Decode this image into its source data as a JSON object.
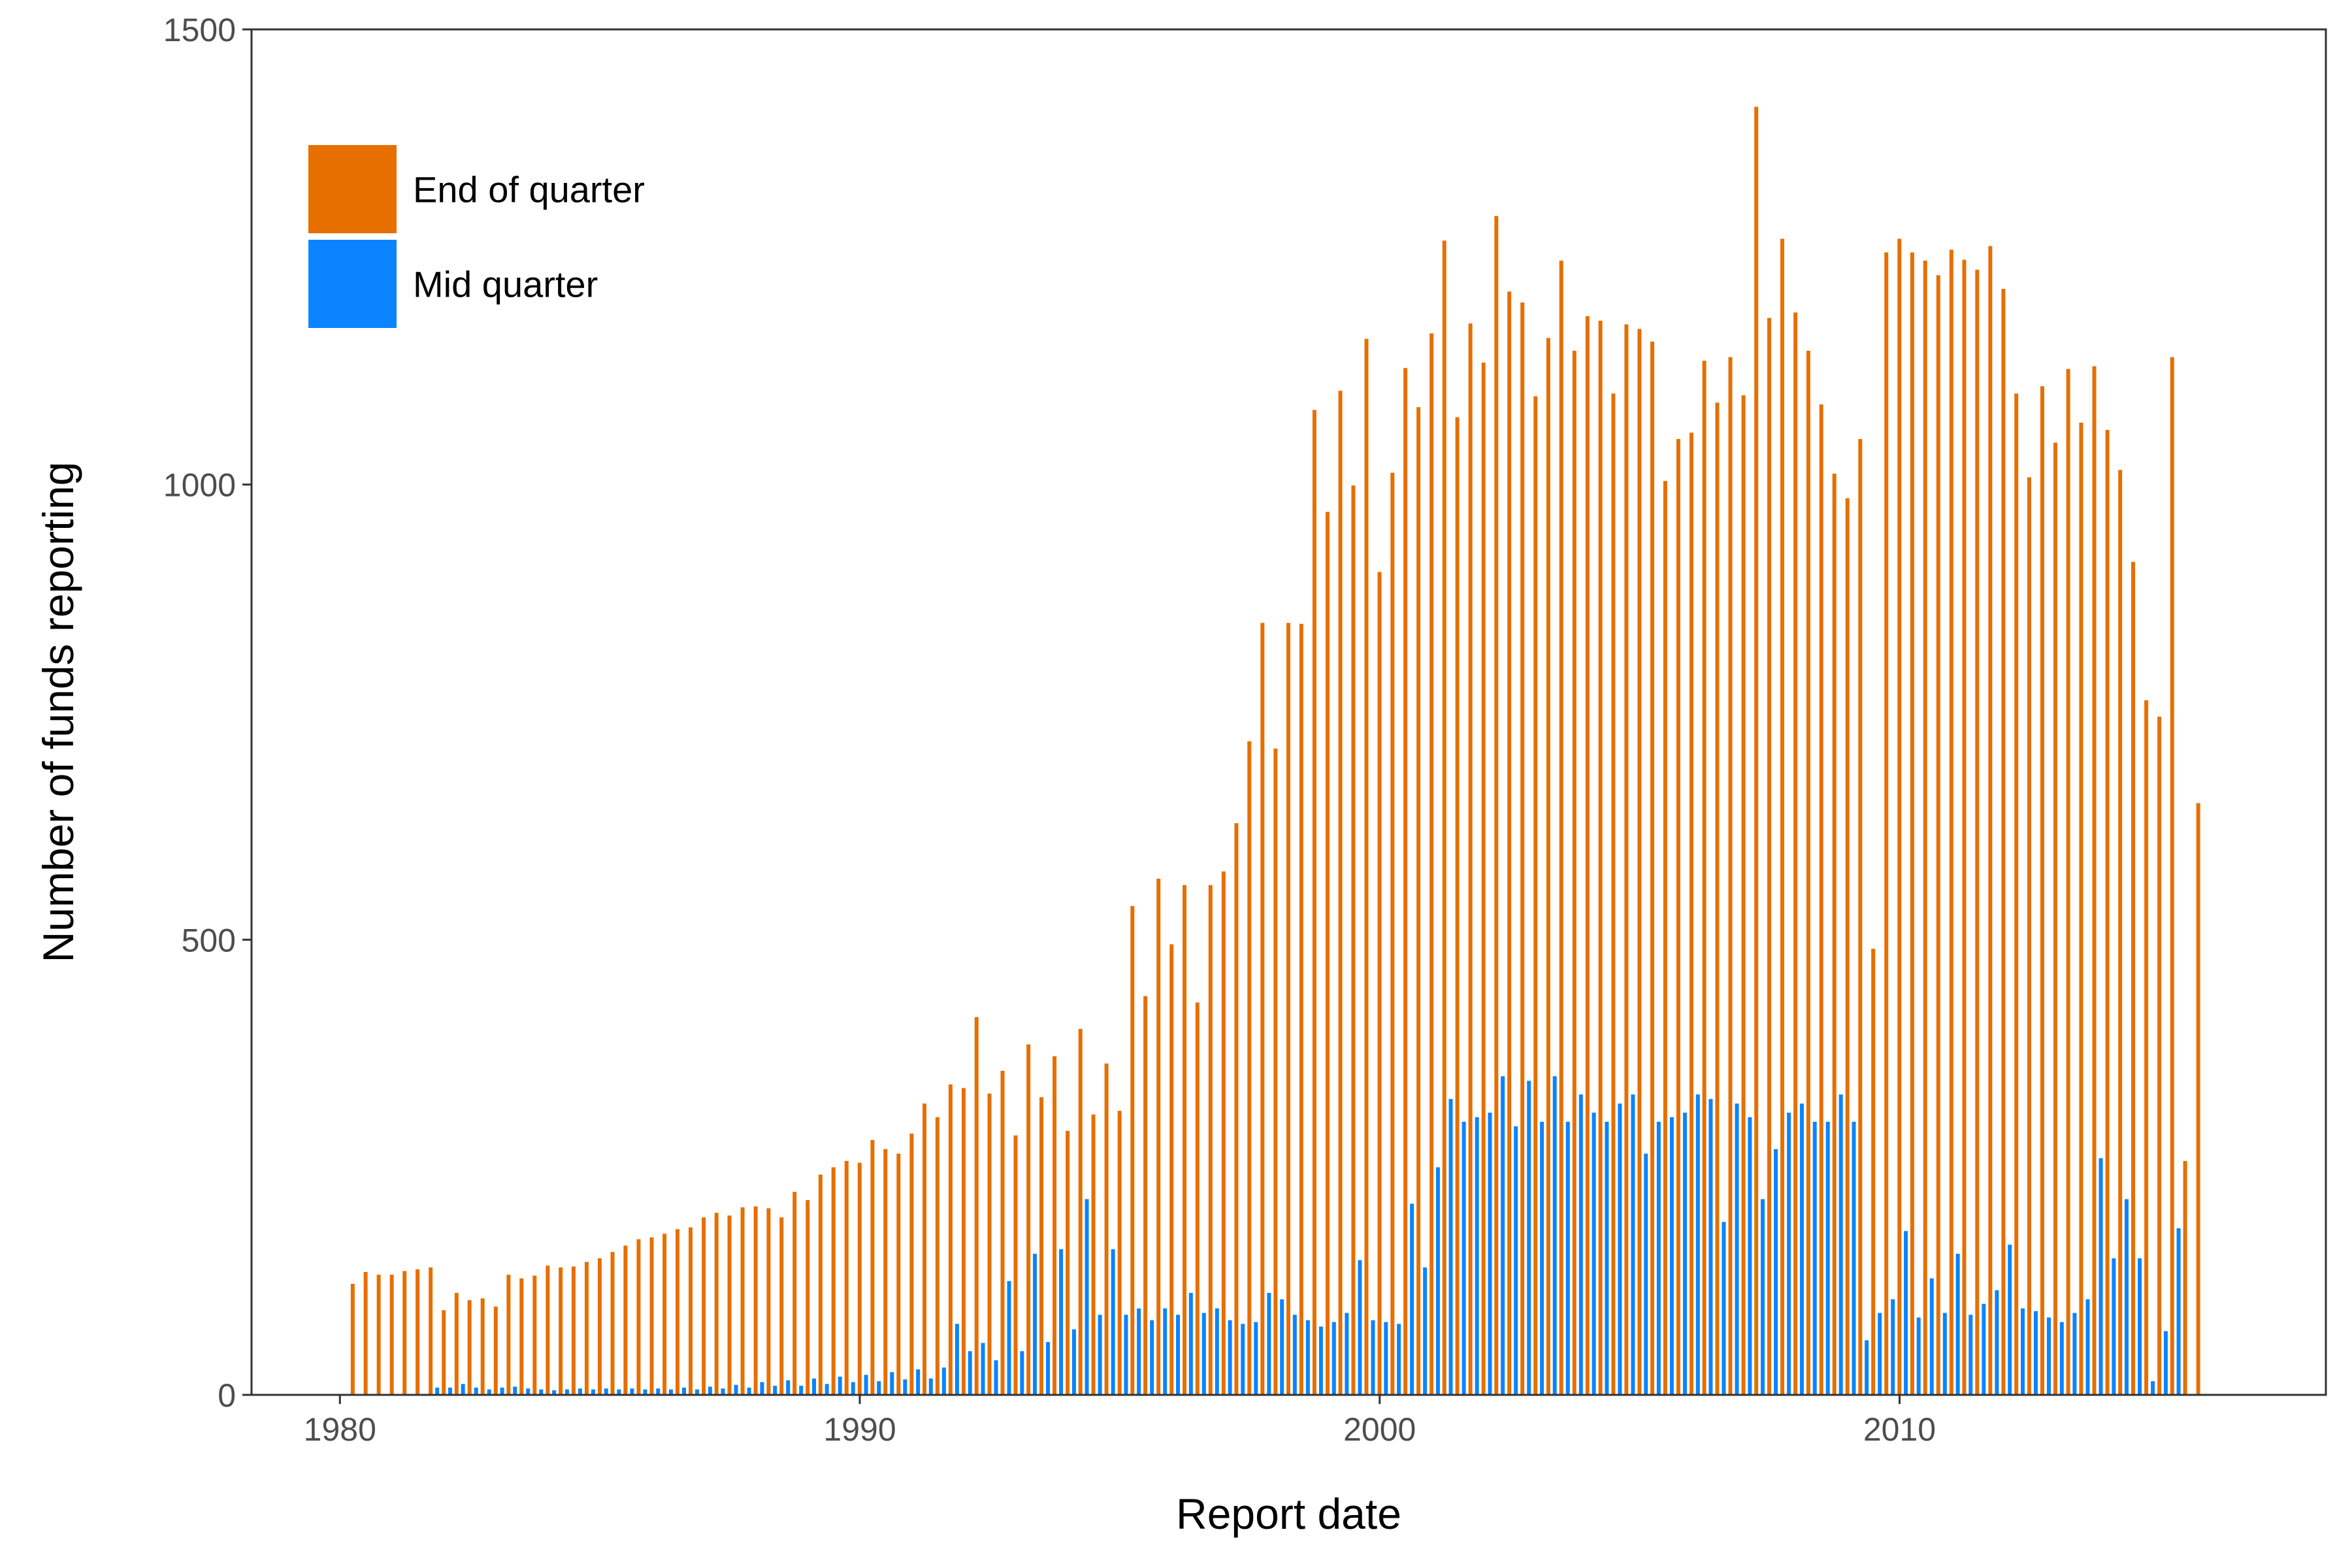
{
  "chart_data": {
    "type": "bar",
    "xlabel": "Report date",
    "ylabel": "Number of funds reporting",
    "xlim": [
      1978.3,
      2018.2
    ],
    "ylim": [
      0,
      1500
    ],
    "x_ticks": [
      1980,
      1990,
      2000,
      2010
    ],
    "y_ticks": [
      0,
      500,
      1000,
      1500
    ],
    "grid": false,
    "legend_position": "top-left",
    "colors": {
      "end_of_quarter": "#E66F00",
      "mid_quarter": "#0A84FF"
    },
    "series": [
      {
        "name": "End of quarter",
        "key": "end_of_quarter",
        "points": [
          [
            "1980-03-31",
            122
          ],
          [
            "1980-06-30",
            135
          ],
          [
            "1980-09-30",
            132
          ],
          [
            "1980-12-31",
            132
          ],
          [
            "1981-03-31",
            136
          ],
          [
            "1981-06-30",
            138
          ],
          [
            "1981-09-30",
            140
          ],
          [
            "1981-12-31",
            93
          ],
          [
            "1982-03-31",
            112
          ],
          [
            "1982-06-30",
            104
          ],
          [
            "1982-09-30",
            106
          ],
          [
            "1982-12-31",
            97
          ],
          [
            "1983-03-31",
            132
          ],
          [
            "1983-06-30",
            128
          ],
          [
            "1983-09-30",
            131
          ],
          [
            "1983-12-31",
            142
          ],
          [
            "1984-03-31",
            140
          ],
          [
            "1984-06-30",
            141
          ],
          [
            "1984-09-30",
            146
          ],
          [
            "1984-12-31",
            150
          ],
          [
            "1985-03-31",
            157
          ],
          [
            "1985-06-30",
            164
          ],
          [
            "1985-09-30",
            171
          ],
          [
            "1985-12-31",
            173
          ],
          [
            "1986-03-31",
            177
          ],
          [
            "1986-06-30",
            182
          ],
          [
            "1986-09-30",
            184
          ],
          [
            "1986-12-31",
            195
          ],
          [
            "1987-03-31",
            200
          ],
          [
            "1987-06-30",
            197
          ],
          [
            "1987-09-30",
            206
          ],
          [
            "1987-12-31",
            207
          ],
          [
            "1988-03-31",
            205
          ],
          [
            "1988-06-30",
            195
          ],
          [
            "1988-09-30",
            223
          ],
          [
            "1988-12-31",
            214
          ],
          [
            "1989-03-31",
            242
          ],
          [
            "1989-06-30",
            250
          ],
          [
            "1989-09-30",
            257
          ],
          [
            "1989-12-31",
            255
          ],
          [
            "1990-03-31",
            280
          ],
          [
            "1990-06-30",
            270
          ],
          [
            "1990-09-30",
            265
          ],
          [
            "1990-12-31",
            287
          ],
          [
            "1991-03-31",
            320
          ],
          [
            "1991-06-30",
            305
          ],
          [
            "1991-09-30",
            341
          ],
          [
            "1991-12-31",
            337
          ],
          [
            "1992-03-31",
            415
          ],
          [
            "1992-06-30",
            331
          ],
          [
            "1992-09-30",
            356
          ],
          [
            "1992-12-31",
            285
          ],
          [
            "1993-03-31",
            385
          ],
          [
            "1993-06-30",
            327
          ],
          [
            "1993-09-30",
            372
          ],
          [
            "1993-12-31",
            290
          ],
          [
            "1994-03-31",
            402
          ],
          [
            "1994-06-30",
            308
          ],
          [
            "1994-09-30",
            364
          ],
          [
            "1994-12-31",
            312
          ],
          [
            "1995-03-31",
            537
          ],
          [
            "1995-06-30",
            438
          ],
          [
            "1995-09-30",
            567
          ],
          [
            "1995-12-31",
            495
          ],
          [
            "1996-03-31",
            560
          ],
          [
            "1996-06-30",
            431
          ],
          [
            "1996-09-30",
            560
          ],
          [
            "1996-12-31",
            575
          ],
          [
            "1997-03-31",
            628
          ],
          [
            "1997-06-30",
            718
          ],
          [
            "1997-09-30",
            848
          ],
          [
            "1997-12-31",
            710
          ],
          [
            "1998-03-31",
            848
          ],
          [
            "1998-06-30",
            847
          ],
          [
            "1998-09-30",
            1082
          ],
          [
            "1998-12-31",
            970
          ],
          [
            "1999-03-31",
            1103
          ],
          [
            "1999-06-30",
            999
          ],
          [
            "1999-09-30",
            1160
          ],
          [
            "1999-12-31",
            904
          ],
          [
            "2000-03-31",
            1013
          ],
          [
            "2000-06-30",
            1128
          ],
          [
            "2000-09-30",
            1085
          ],
          [
            "2000-12-31",
            1166
          ],
          [
            "2001-03-31",
            1268
          ],
          [
            "2001-06-30",
            1074
          ],
          [
            "2001-09-30",
            1177
          ],
          [
            "2001-12-31",
            1134
          ],
          [
            "2002-03-31",
            1295
          ],
          [
            "2002-06-30",
            1212
          ],
          [
            "2002-09-30",
            1200
          ],
          [
            "2002-12-31",
            1097
          ],
          [
            "2003-03-31",
            1161
          ],
          [
            "2003-06-30",
            1246
          ],
          [
            "2003-09-30",
            1147
          ],
          [
            "2003-12-31",
            1185
          ],
          [
            "2004-03-31",
            1180
          ],
          [
            "2004-06-30",
            1100
          ],
          [
            "2004-09-30",
            1176
          ],
          [
            "2004-12-31",
            1171
          ],
          [
            "2005-03-31",
            1157
          ],
          [
            "2005-06-30",
            1004
          ],
          [
            "2005-09-30",
            1050
          ],
          [
            "2005-12-31",
            1057
          ],
          [
            "2006-03-31",
            1136
          ],
          [
            "2006-06-30",
            1090
          ],
          [
            "2006-09-30",
            1140
          ],
          [
            "2006-12-31",
            1098
          ],
          [
            "2007-03-31",
            1415
          ],
          [
            "2007-06-30",
            1183
          ],
          [
            "2007-09-30",
            1270
          ],
          [
            "2007-12-31",
            1189
          ],
          [
            "2008-03-31",
            1147
          ],
          [
            "2008-06-30",
            1088
          ],
          [
            "2008-09-30",
            1012
          ],
          [
            "2008-12-31",
            985
          ],
          [
            "2009-03-31",
            1050
          ],
          [
            "2009-06-30",
            490
          ],
          [
            "2009-09-30",
            1255
          ],
          [
            "2009-12-31",
            1270
          ],
          [
            "2010-03-31",
            1255
          ],
          [
            "2010-06-30",
            1246
          ],
          [
            "2010-09-30",
            1230
          ],
          [
            "2010-12-31",
            1258
          ],
          [
            "2011-03-31",
            1247
          ],
          [
            "2011-06-30",
            1236
          ],
          [
            "2011-09-30",
            1262
          ],
          [
            "2011-12-31",
            1215
          ],
          [
            "2012-03-31",
            1100
          ],
          [
            "2012-06-30",
            1008
          ],
          [
            "2012-09-30",
            1108
          ],
          [
            "2012-12-31",
            1046
          ],
          [
            "2013-03-31",
            1127
          ],
          [
            "2013-06-30",
            1068
          ],
          [
            "2013-09-30",
            1130
          ],
          [
            "2013-12-31",
            1060
          ],
          [
            "2014-03-31",
            1016
          ],
          [
            "2014-06-30",
            915
          ],
          [
            "2014-09-30",
            763
          ],
          [
            "2014-12-31",
            745
          ],
          [
            "2015-03-31",
            1140
          ],
          [
            "2015-06-30",
            257
          ],
          [
            "2015-09-30",
            650
          ]
        ]
      },
      {
        "name": "Mid quarter",
        "key": "mid_quarter",
        "points": [
          [
            "1981-11-15",
            8
          ],
          [
            "1982-02-14",
            8
          ],
          [
            "1982-05-15",
            12
          ],
          [
            "1982-08-15",
            8
          ],
          [
            "1982-11-15",
            6
          ],
          [
            "1983-02-14",
            8
          ],
          [
            "1983-05-15",
            9
          ],
          [
            "1983-08-15",
            7
          ],
          [
            "1983-11-15",
            6
          ],
          [
            "1984-02-14",
            5
          ],
          [
            "1984-05-15",
            6
          ],
          [
            "1984-08-15",
            7
          ],
          [
            "1984-11-15",
            6
          ],
          [
            "1985-02-14",
            7
          ],
          [
            "1985-05-15",
            6
          ],
          [
            "1985-08-15",
            7
          ],
          [
            "1985-11-15",
            6
          ],
          [
            "1986-02-14",
            7
          ],
          [
            "1986-05-15",
            6
          ],
          [
            "1986-08-15",
            8
          ],
          [
            "1986-11-15",
            6
          ],
          [
            "1987-02-14",
            9
          ],
          [
            "1987-05-15",
            7
          ],
          [
            "1987-08-15",
            11
          ],
          [
            "1987-11-15",
            8
          ],
          [
            "1988-02-14",
            14
          ],
          [
            "1988-05-15",
            10
          ],
          [
            "1988-08-15",
            16
          ],
          [
            "1988-11-15",
            10
          ],
          [
            "1989-02-14",
            18
          ],
          [
            "1989-05-15",
            12
          ],
          [
            "1989-08-15",
            20
          ],
          [
            "1989-11-15",
            14
          ],
          [
            "1990-02-14",
            22
          ],
          [
            "1990-05-15",
            15
          ],
          [
            "1990-08-15",
            25
          ],
          [
            "1990-11-15",
            17
          ],
          [
            "1991-02-14",
            28
          ],
          [
            "1991-05-15",
            18
          ],
          [
            "1991-08-15",
            30
          ],
          [
            "1991-11-15",
            78
          ],
          [
            "1992-02-14",
            48
          ],
          [
            "1992-05-15",
            57
          ],
          [
            "1992-08-15",
            38
          ],
          [
            "1992-11-15",
            125
          ],
          [
            "1993-02-14",
            48
          ],
          [
            "1993-05-15",
            155
          ],
          [
            "1993-08-15",
            58
          ],
          [
            "1993-11-15",
            160
          ],
          [
            "1994-02-14",
            72
          ],
          [
            "1994-05-15",
            215
          ],
          [
            "1994-08-15",
            88
          ],
          [
            "1994-11-15",
            160
          ],
          [
            "1995-02-14",
            88
          ],
          [
            "1995-05-15",
            95
          ],
          [
            "1995-08-15",
            82
          ],
          [
            "1995-11-15",
            95
          ],
          [
            "1996-02-14",
            88
          ],
          [
            "1996-05-15",
            112
          ],
          [
            "1996-08-15",
            90
          ],
          [
            "1996-11-15",
            95
          ],
          [
            "1997-02-14",
            82
          ],
          [
            "1997-05-15",
            78
          ],
          [
            "1997-08-15",
            80
          ],
          [
            "1997-11-15",
            112
          ],
          [
            "1998-02-14",
            105
          ],
          [
            "1998-05-15",
            88
          ],
          [
            "1998-08-15",
            82
          ],
          [
            "1998-11-15",
            75
          ],
          [
            "1999-02-14",
            80
          ],
          [
            "1999-05-15",
            90
          ],
          [
            "1999-08-15",
            148
          ],
          [
            "1999-11-15",
            82
          ],
          [
            "2000-02-14",
            80
          ],
          [
            "2000-05-15",
            78
          ],
          [
            "2000-08-15",
            210
          ],
          [
            "2000-11-15",
            140
          ],
          [
            "2001-02-14",
            250
          ],
          [
            "2001-05-15",
            325
          ],
          [
            "2001-08-15",
            300
          ],
          [
            "2001-11-15",
            305
          ],
          [
            "2002-02-14",
            310
          ],
          [
            "2002-05-15",
            350
          ],
          [
            "2002-08-15",
            295
          ],
          [
            "2002-11-15",
            345
          ],
          [
            "2003-02-14",
            300
          ],
          [
            "2003-05-15",
            350
          ],
          [
            "2003-08-15",
            300
          ],
          [
            "2003-11-15",
            330
          ],
          [
            "2004-02-14",
            310
          ],
          [
            "2004-05-15",
            300
          ],
          [
            "2004-08-15",
            320
          ],
          [
            "2004-11-15",
            330
          ],
          [
            "2005-02-14",
            265
          ],
          [
            "2005-05-15",
            300
          ],
          [
            "2005-08-15",
            305
          ],
          [
            "2005-11-15",
            310
          ],
          [
            "2006-02-14",
            330
          ],
          [
            "2006-05-15",
            325
          ],
          [
            "2006-08-15",
            190
          ],
          [
            "2006-11-15",
            320
          ],
          [
            "2007-02-14",
            305
          ],
          [
            "2007-05-15",
            215
          ],
          [
            "2007-08-15",
            270
          ],
          [
            "2007-11-15",
            310
          ],
          [
            "2008-02-14",
            320
          ],
          [
            "2008-05-15",
            300
          ],
          [
            "2008-08-15",
            300
          ],
          [
            "2008-11-15",
            330
          ],
          [
            "2009-02-14",
            300
          ],
          [
            "2009-05-15",
            60
          ],
          [
            "2009-08-15",
            90
          ],
          [
            "2009-11-15",
            105
          ],
          [
            "2010-02-14",
            180
          ],
          [
            "2010-05-15",
            85
          ],
          [
            "2010-08-15",
            128
          ],
          [
            "2010-11-15",
            90
          ],
          [
            "2011-02-14",
            155
          ],
          [
            "2011-05-15",
            88
          ],
          [
            "2011-08-15",
            100
          ],
          [
            "2011-11-15",
            115
          ],
          [
            "2012-02-14",
            165
          ],
          [
            "2012-05-15",
            95
          ],
          [
            "2012-08-15",
            92
          ],
          [
            "2012-11-15",
            85
          ],
          [
            "2013-02-14",
            80
          ],
          [
            "2013-05-15",
            90
          ],
          [
            "2013-08-15",
            105
          ],
          [
            "2013-11-15",
            260
          ],
          [
            "2014-02-14",
            150
          ],
          [
            "2014-05-15",
            215
          ],
          [
            "2014-08-15",
            150
          ],
          [
            "2014-11-15",
            15
          ],
          [
            "2015-02-14",
            70
          ],
          [
            "2015-05-15",
            183
          ]
        ]
      }
    ]
  }
}
